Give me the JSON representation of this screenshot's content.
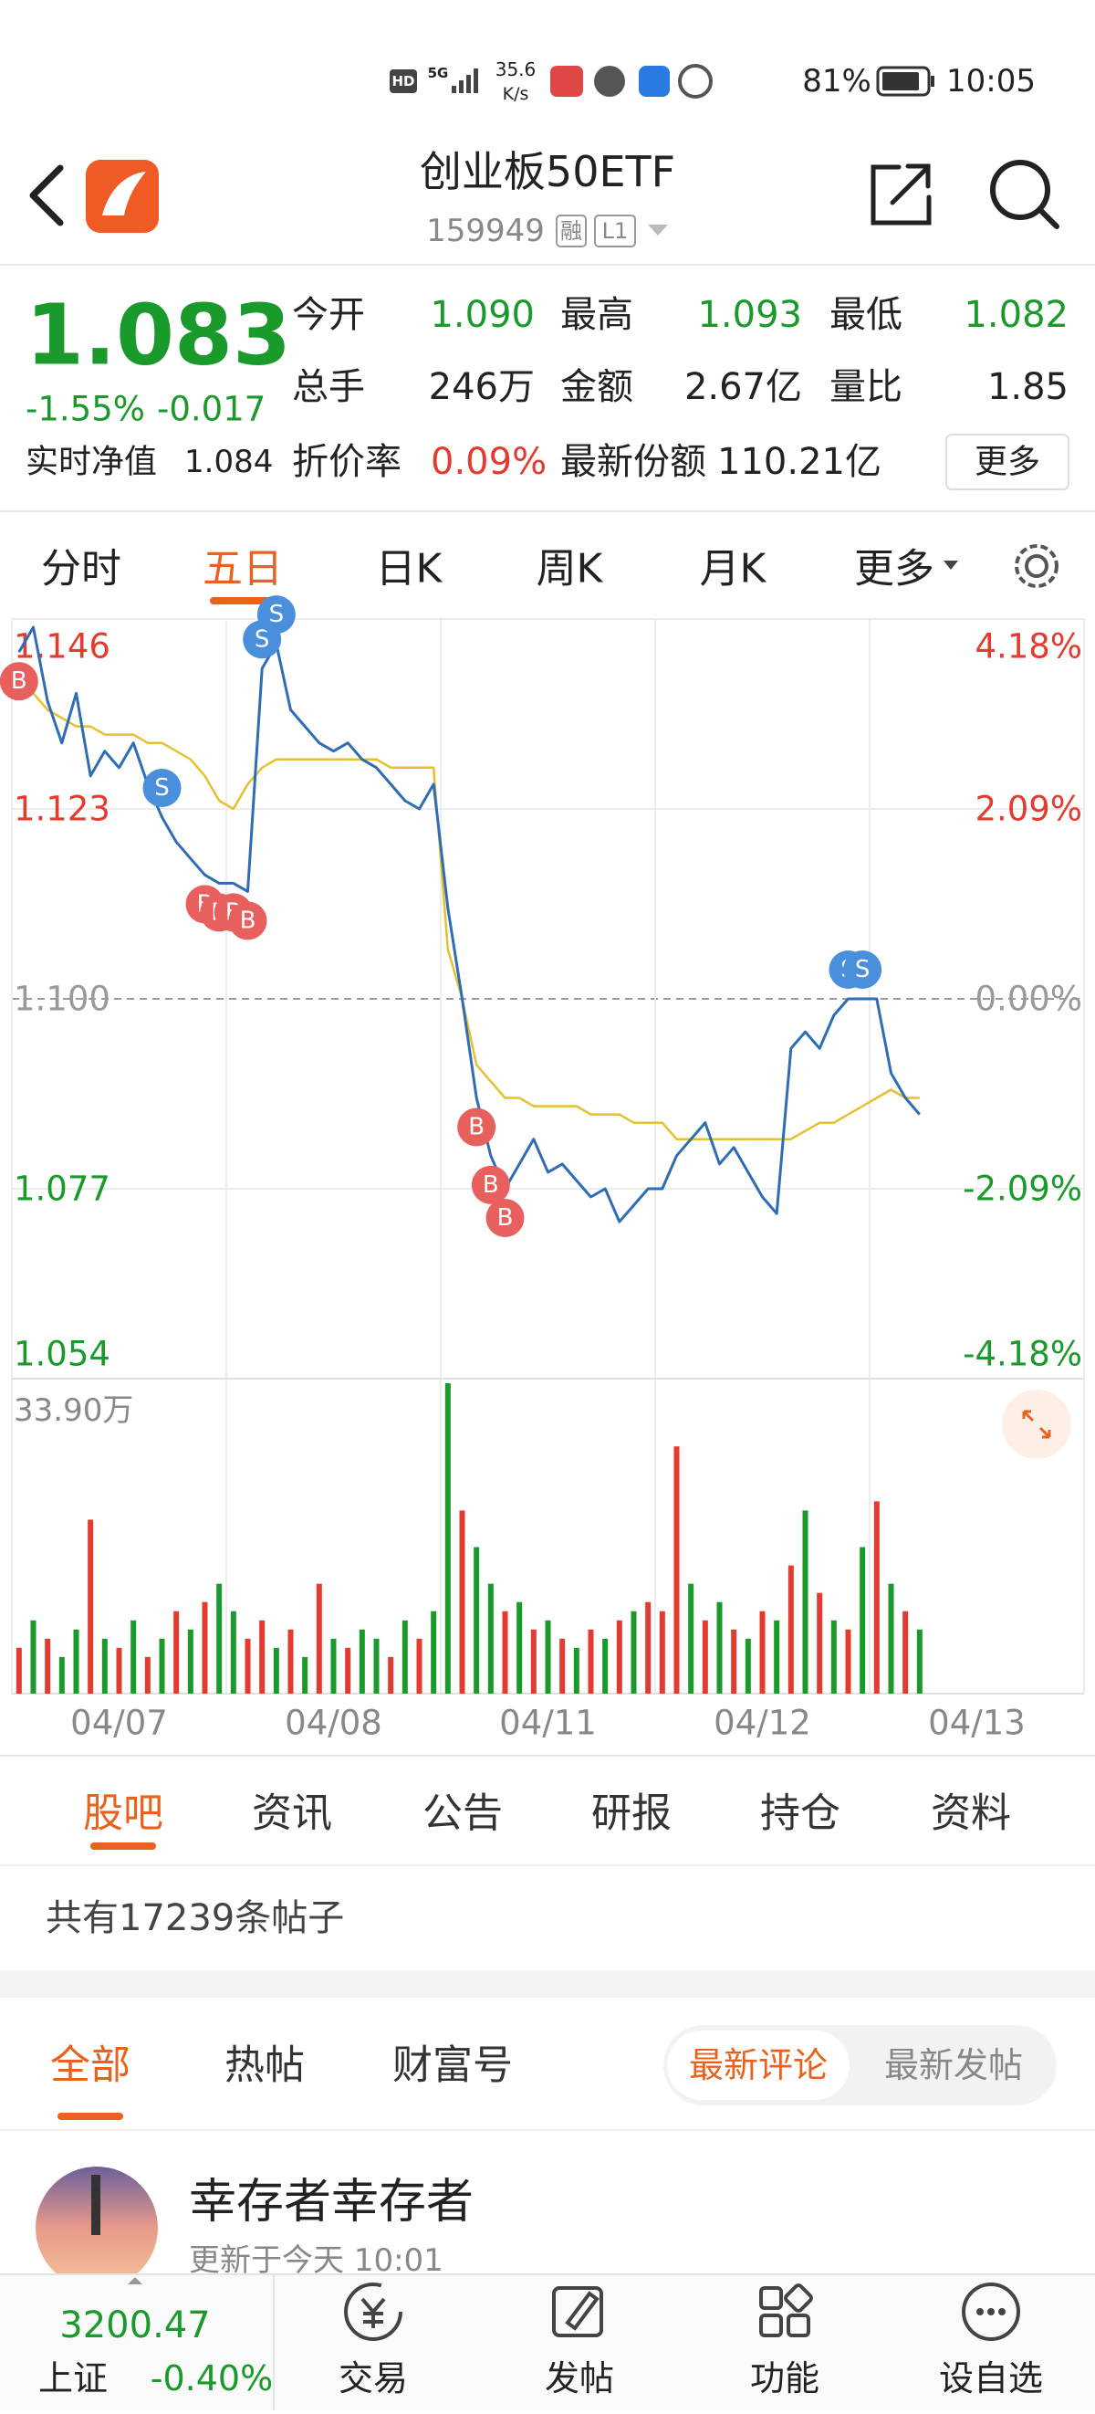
{
  "status_bar": {
    "network": "5G",
    "hd": "HD",
    "speed": "35.6",
    "speed_unit": "K/s",
    "battery": "81%",
    "time": "10:05"
  },
  "header": {
    "title": "创业板50ETF",
    "code": "159949",
    "badge_margin": "融",
    "badge_level": "L1"
  },
  "quote": {
    "price": "1.083",
    "change_pct": "-1.55%",
    "change": "-0.017",
    "color": "#1a9a2a",
    "nav_label": "实时净值",
    "nav": "1.084",
    "stats": [
      {
        "label": "今开",
        "value": "1.090",
        "color": "#1a9a2a"
      },
      {
        "label": "最高",
        "value": "1.093",
        "color": "#1a9a2a"
      },
      {
        "label": "最低",
        "value": "1.082",
        "color": "#1a9a2a"
      },
      {
        "label": "总手",
        "value": "246万",
        "color": "#222222"
      },
      {
        "label": "金额",
        "value": "2.67亿",
        "color": "#222222"
      },
      {
        "label": "量比",
        "value": "1.85",
        "color": "#222222"
      }
    ],
    "discount_label": "折价率",
    "discount": "0.09%",
    "discount_color": "#e33b2f",
    "shares_label": "最新份额",
    "shares": "110.21亿",
    "more": "更多"
  },
  "chart_tabs": {
    "items": [
      "分时",
      "五日",
      "日K",
      "周K",
      "月K",
      "更多"
    ],
    "active": 1
  },
  "chart_data": {
    "type": "line",
    "categories": [
      "04/07",
      "04/08",
      "04/11",
      "04/12",
      "04/13"
    ],
    "ylim": [
      1.054,
      1.146
    ],
    "yticks": [
      1.146,
      1.123,
      {
        "value": 1.1,
        "label": "1.100"
      },
      1.077,
      1.054
    ],
    "y2lim": [
      -4.18,
      4.18
    ],
    "y2ticks": [
      {
        "value": 4.18,
        "label": "4.18%"
      },
      {
        "value": 2.09,
        "label": "2.09%"
      },
      {
        "value": 0,
        "label": "0.00%"
      },
      {
        "value": -2.09,
        "label": "-2.09%"
      },
      {
        "value": -4.18,
        "label": "-4.18%"
      }
    ],
    "price_color": "#2e6db5",
    "avg_color": "#e6c02e",
    "up_color": "#e33b2f",
    "down_color": "#1a9a2a",
    "buy_color": "#e8605d",
    "sell_color": "#4a8fdc",
    "volume_ylim": [
      0,
      33.9
    ],
    "volume_yticks": [
      {
        "value": 33.9,
        "label": "33.90万"
      }
    ],
    "days": [
      {
        "price": [
          1.142,
          1.145,
          1.136,
          1.131,
          1.137,
          1.127,
          1.13,
          1.128,
          1.131,
          1.126,
          1.122,
          1.119,
          1.117,
          1.115,
          1.114
        ],
        "avg": [
          1.14,
          1.137,
          1.135,
          1.134,
          1.133,
          1.133,
          1.132,
          1.132,
          1.132,
          1.131,
          1.131,
          1.13,
          1.129,
          1.127,
          1.124
        ],
        "signals": [
          "B",
          null,
          null,
          null,
          null,
          null,
          null,
          null,
          null,
          null,
          "S",
          null,
          null,
          "B",
          "B"
        ],
        "volume": [
          5,
          8,
          6,
          4,
          7,
          19,
          6,
          5,
          8,
          4,
          6,
          9,
          7,
          10,
          12
        ],
        "volume_up": [
          true,
          false,
          true,
          false,
          false,
          true,
          false,
          true,
          false,
          true,
          false,
          true,
          false,
          true,
          false
        ]
      },
      {
        "price": [
          1.114,
          1.113,
          1.14,
          1.143,
          1.135,
          1.133,
          1.131,
          1.13,
          1.131,
          1.129,
          1.128,
          1.126,
          1.124,
          1.123,
          1.126
        ],
        "avg": [
          1.123,
          1.126,
          1.128,
          1.129,
          1.129,
          1.129,
          1.129,
          1.129,
          1.129,
          1.129,
          1.129,
          1.128,
          1.128,
          1.128,
          1.128
        ],
        "signals": [
          "B",
          "B",
          "S",
          "S",
          null,
          null,
          null,
          null,
          null,
          null,
          null,
          null,
          null,
          null,
          null
        ],
        "volume": [
          9,
          6,
          8,
          5,
          7,
          4,
          12,
          6,
          5,
          7,
          6,
          4,
          8,
          6,
          9
        ],
        "volume_up": [
          false,
          true,
          true,
          false,
          true,
          false,
          true,
          false,
          true,
          false,
          false,
          true,
          false,
          true,
          false
        ]
      },
      {
        "price": [
          1.111,
          1.1,
          1.088,
          1.081,
          1.077,
          1.08,
          1.083,
          1.079,
          1.08,
          1.078,
          1.076,
          1.077,
          1.073,
          1.075,
          1.077
        ],
        "avg": [
          1.106,
          1.1,
          1.092,
          1.09,
          1.088,
          1.088,
          1.087,
          1.087,
          1.087,
          1.087,
          1.086,
          1.086,
          1.086,
          1.085,
          1.085
        ],
        "signals": [
          null,
          null,
          "B",
          "B",
          "B",
          null,
          null,
          null,
          null,
          null,
          null,
          null,
          null,
          null,
          null
        ],
        "volume": [
          33.9,
          20,
          16,
          12,
          9,
          10,
          7,
          8,
          6,
          5,
          7,
          6,
          8,
          9,
          10
        ],
        "volume_up": [
          false,
          true,
          false,
          false,
          true,
          false,
          true,
          false,
          true,
          false,
          true,
          false,
          true,
          false,
          true
        ]
      },
      {
        "price": [
          1.077,
          1.081,
          1.083,
          1.085,
          1.08,
          1.082,
          1.079,
          1.076,
          1.074,
          1.094,
          1.096,
          1.094,
          1.098,
          1.1,
          1.1
        ],
        "avg": [
          1.085,
          1.083,
          1.083,
          1.083,
          1.083,
          1.083,
          1.083,
          1.083,
          1.083,
          1.083,
          1.084,
          1.085,
          1.085,
          1.086,
          1.087
        ],
        "signals": [
          null,
          null,
          null,
          null,
          null,
          null,
          null,
          null,
          null,
          null,
          null,
          null,
          null,
          "S",
          "S"
        ],
        "volume": [
          9,
          27,
          12,
          8,
          10,
          7,
          6,
          9,
          8,
          14,
          20,
          11,
          8,
          7,
          16
        ],
        "volume_up": [
          true,
          true,
          false,
          true,
          false,
          true,
          false,
          true,
          false,
          true,
          false,
          true,
          false,
          true,
          false
        ]
      },
      {
        "price": [
          1.1,
          1.091,
          1.088,
          1.086
        ],
        "avg": [
          1.088,
          1.089,
          1.088,
          1.088
        ],
        "signals": [
          null,
          null,
          null,
          null
        ],
        "volume": [
          21,
          12,
          9,
          7
        ],
        "volume_up": [
          true,
          false,
          true,
          false
        ]
      }
    ]
  },
  "post_tabs": {
    "items": [
      "股吧",
      "资讯",
      "公告",
      "研报",
      "持仓",
      "资料"
    ],
    "active": 0
  },
  "post_count": "共有17239条帖子",
  "filters": {
    "items": [
      "全部",
      "热帖",
      "财富号"
    ],
    "active": 0
  },
  "sort": {
    "items": [
      "最新评论",
      "最新发帖"
    ],
    "active": 0
  },
  "post": {
    "author": "幸存者幸存者",
    "time": "更新于今天 10:01"
  },
  "bottom_bar": {
    "index_value": "3200.47",
    "index_name": "上证",
    "index_change": "-0.40%",
    "index_color": "#1a9a2a",
    "items": [
      "交易",
      "发帖",
      "功能",
      "设自选"
    ]
  }
}
